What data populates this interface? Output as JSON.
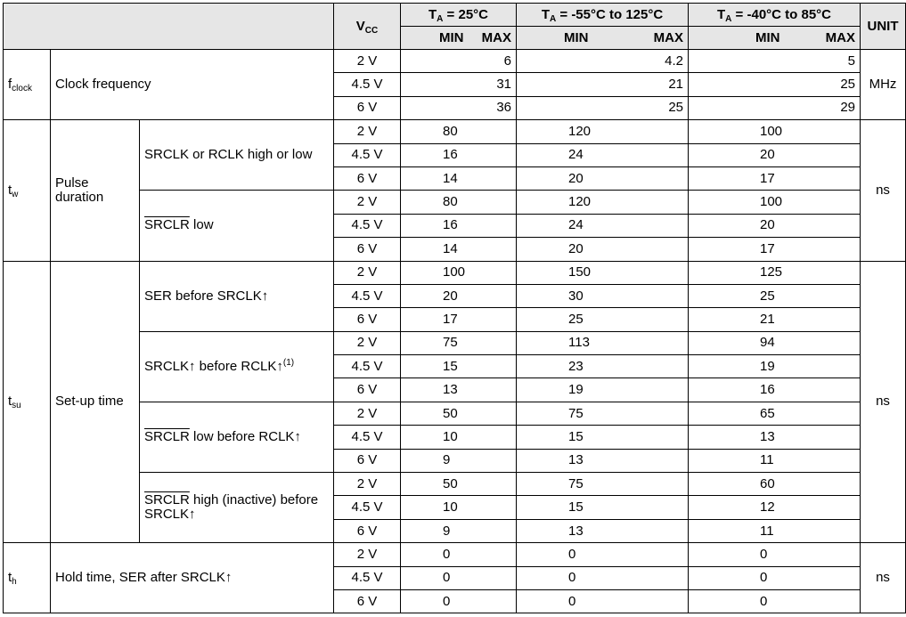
{
  "header": {
    "vcc": "V",
    "vcc_sub": "CC",
    "ta1_t": "T",
    "ta1_sub": "A",
    "ta1_rest": " = 25°C",
    "ta2_t": "T",
    "ta2_sub": "A",
    "ta2_rest": " = -55°C to 125°C",
    "ta3_t": "T",
    "ta3_sub": "A",
    "ta3_rest": " = -40°C to 85°C",
    "unit": "UNIT",
    "min": "MIN",
    "max": "MAX"
  },
  "fclock": {
    "sym": "f",
    "sym_sub": "clock",
    "desc": "Clock frequency",
    "unit": "MHz",
    "rows": [
      {
        "vcc": "2 V",
        "t25": "6",
        "t125": "4.2",
        "t85": "5"
      },
      {
        "vcc": "4.5 V",
        "t25": "31",
        "t125": "21",
        "t85": "25"
      },
      {
        "vcc": "6 V",
        "t25": "36",
        "t125": "25",
        "t85": "29"
      }
    ]
  },
  "tw": {
    "sym": "t",
    "sym_sub": "w",
    "desc": "Pulse duration",
    "unit": "ns",
    "groups": [
      {
        "cond_parts": [
          {
            "text": "SRCLK or RCLK high or low",
            "ovl": false
          }
        ],
        "rows": [
          {
            "vcc": "2 V",
            "t25": "80",
            "t125": "120",
            "t85": "100"
          },
          {
            "vcc": "4.5 V",
            "t25": "16",
            "t125": "24",
            "t85": "20"
          },
          {
            "vcc": "6 V",
            "t25": "14",
            "t125": "20",
            "t85": "17"
          }
        ]
      },
      {
        "cond_parts": [
          {
            "text": "SRCLR",
            "ovl": true
          },
          {
            "text": " low",
            "ovl": false
          }
        ],
        "rows": [
          {
            "vcc": "2 V",
            "t25": "80",
            "t125": "120",
            "t85": "100"
          },
          {
            "vcc": "4.5 V",
            "t25": "16",
            "t125": "24",
            "t85": "20"
          },
          {
            "vcc": "6 V",
            "t25": "14",
            "t125": "20",
            "t85": "17"
          }
        ]
      }
    ]
  },
  "tsu": {
    "sym": "t",
    "sym_sub": "su",
    "desc": "Set-up time",
    "unit": "ns",
    "groups": [
      {
        "cond_parts": [
          {
            "text": "SER before SRCLK↑",
            "ovl": false
          }
        ],
        "rows": [
          {
            "vcc": "2 V",
            "t25": "100",
            "t125": "150",
            "t85": "125"
          },
          {
            "vcc": "4.5 V",
            "t25": "20",
            "t125": "30",
            "t85": "25"
          },
          {
            "vcc": "6 V",
            "t25": "17",
            "t125": "25",
            "t85": "21"
          }
        ]
      },
      {
        "cond_parts": [
          {
            "text": "SRCLK↑ before RCLK↑",
            "ovl": false
          },
          {
            "text": "(1)",
            "sup": true
          }
        ],
        "rows": [
          {
            "vcc": "2 V",
            "t25": "75",
            "t125": "113",
            "t85": "94"
          },
          {
            "vcc": "4.5 V",
            "t25": "15",
            "t125": "23",
            "t85": "19"
          },
          {
            "vcc": "6 V",
            "t25": "13",
            "t125": "19",
            "t85": "16"
          }
        ]
      },
      {
        "cond_parts": [
          {
            "text": "SRCLR",
            "ovl": true
          },
          {
            "text": " low before RCLK↑",
            "ovl": false
          }
        ],
        "rows": [
          {
            "vcc": "2 V",
            "t25": "50",
            "t125": "75",
            "t85": "65"
          },
          {
            "vcc": "4.5 V",
            "t25": "10",
            "t125": "15",
            "t85": "13"
          },
          {
            "vcc": "6 V",
            "t25": "9",
            "t125": "13",
            "t85": "11"
          }
        ]
      },
      {
        "cond_parts": [
          {
            "text": "SRCLR",
            "ovl": true
          },
          {
            "text": " high (inactive) before SRCLK↑",
            "ovl": false
          }
        ],
        "rows": [
          {
            "vcc": "2 V",
            "t25": "50",
            "t125": "75",
            "t85": "60"
          },
          {
            "vcc": "4.5 V",
            "t25": "10",
            "t125": "15",
            "t85": "12"
          },
          {
            "vcc": "6 V",
            "t25": "9",
            "t125": "13",
            "t85": "11"
          }
        ]
      }
    ]
  },
  "th": {
    "sym": "t",
    "sym_sub": "h",
    "desc": "Hold time, SER after SRCLK↑",
    "unit": "ns",
    "rows": [
      {
        "vcc": "2 V",
        "t25": "0",
        "t125": "0",
        "t85": "0"
      },
      {
        "vcc": "4.5 V",
        "t25": "0",
        "t125": "0",
        "t85": "0"
      },
      {
        "vcc": "6 V",
        "t25": "0",
        "t125": "0",
        "t85": "0"
      }
    ]
  }
}
